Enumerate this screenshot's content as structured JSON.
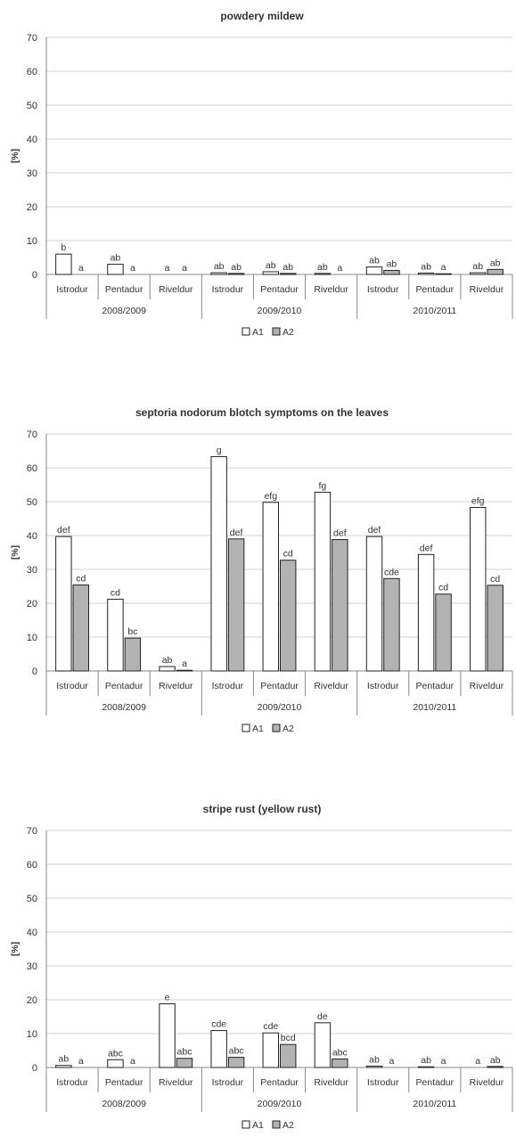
{
  "colors": {
    "A1": "#ffffff",
    "A2": "#b3b3b3",
    "stroke": "#222222",
    "grid": "#d0d0d0"
  },
  "chart_data": [
    {
      "type": "bar",
      "title": "powdery mildew",
      "ylabel": "[%]",
      "ylim": [
        0,
        70
      ],
      "yticks": [
        0,
        10,
        20,
        30,
        40,
        50,
        60,
        70
      ],
      "grid": true,
      "legend": "bottom",
      "groups": [
        "2008/2009",
        "2009/2010",
        "2010/2011"
      ],
      "categories": [
        "Istrodur",
        "Pentadur",
        "Riveldur",
        "Istrodur",
        "Pentadur",
        "Riveldur",
        "Istrodur",
        "Pentadur",
        "Riveldur"
      ],
      "series": [
        {
          "name": "A1",
          "values": [
            6.0,
            3.0,
            0.0,
            0.5,
            0.8,
            0.3,
            2.2,
            0.4,
            0.5
          ],
          "labels": [
            "b",
            "ab",
            "a",
            "ab",
            "ab",
            "ab",
            "ab",
            "ab",
            "ab"
          ]
        },
        {
          "name": "A2",
          "values": [
            0.0,
            0.0,
            0.0,
            0.3,
            0.3,
            0.0,
            1.2,
            0.2,
            1.5
          ],
          "labels": [
            "a",
            "a",
            "a",
            "ab",
            "ab",
            "a",
            "ab",
            "a",
            "ab"
          ]
        }
      ]
    },
    {
      "type": "bar",
      "title": "septoria nodorum blotch symptoms on the leaves",
      "ylabel": "[%]",
      "ylim": [
        0,
        70
      ],
      "yticks": [
        0,
        10,
        20,
        30,
        40,
        50,
        60,
        70
      ],
      "grid": true,
      "legend": "bottom",
      "groups": [
        "2008/2009",
        "2009/2010",
        "2010/2011"
      ],
      "categories": [
        "Istrodur",
        "Pentadur",
        "Riveldur",
        "Istrodur",
        "Pentadur",
        "Riveldur",
        "Istrodur",
        "Pentadur",
        "Riveldur"
      ],
      "series": [
        {
          "name": "A1",
          "values": [
            39.7,
            21.2,
            1.3,
            63.3,
            49.8,
            52.8,
            39.7,
            34.4,
            48.3
          ],
          "labels": [
            "def",
            "cd",
            "ab",
            "g",
            "efg",
            "fg",
            "def",
            "def",
            "efg"
          ]
        },
        {
          "name": "A2",
          "values": [
            25.4,
            9.7,
            0.2,
            39.0,
            32.7,
            38.8,
            27.3,
            22.7,
            25.3
          ],
          "labels": [
            "cd",
            "bc",
            "a",
            "def",
            "cd",
            "def",
            "cde",
            "cd",
            "cd"
          ]
        }
      ]
    },
    {
      "type": "bar",
      "title": "stripe rust (yellow rust)",
      "ylabel": "[%]",
      "ylim": [
        0,
        70
      ],
      "yticks": [
        0,
        10,
        20,
        30,
        40,
        50,
        60,
        70
      ],
      "grid": true,
      "legend": "bottom",
      "groups": [
        "2008/2009",
        "2009/2010",
        "2010/2011"
      ],
      "categories": [
        "Istrodur",
        "Pentadur",
        "Riveldur",
        "Istrodur",
        "Pentadur",
        "Riveldur",
        "Istrodur",
        "Pentadur",
        "Riveldur"
      ],
      "series": [
        {
          "name": "A1",
          "values": [
            0.6,
            2.3,
            18.8,
            10.9,
            10.2,
            13.2,
            0.4,
            0.2,
            0.0
          ],
          "labels": [
            "ab",
            "abc",
            "e",
            "cde",
            "cde",
            "de",
            "ab",
            "ab",
            "a"
          ]
        },
        {
          "name": "A2",
          "values": [
            0.0,
            0.0,
            2.7,
            3.0,
            6.8,
            2.5,
            0.0,
            0.0,
            0.3
          ],
          "labels": [
            "a",
            "a",
            "abc",
            "abc",
            "bcd",
            "abc",
            "a",
            "a",
            "ab"
          ]
        }
      ]
    }
  ]
}
